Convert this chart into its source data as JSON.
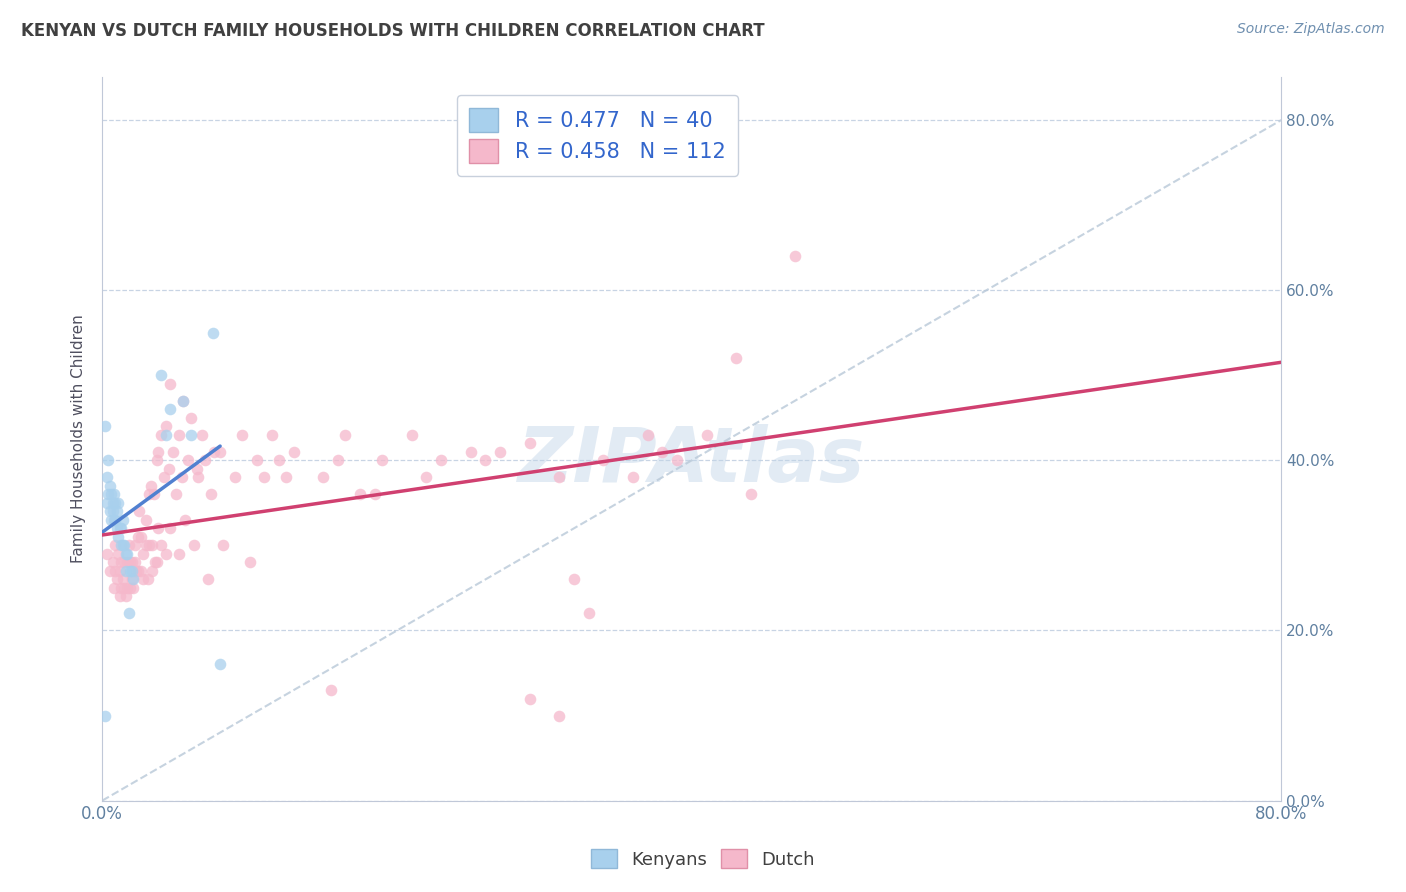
{
  "title": "KENYAN VS DUTCH FAMILY HOUSEHOLDS WITH CHILDREN CORRELATION CHART",
  "source": "Source: ZipAtlas.com",
  "ylabel": "Family Households with Children",
  "watermark": "ZIPAtlas",
  "legend_line1": "R = 0.477   N = 40",
  "legend_line2": "R = 0.458   N = 112",
  "kenyan_color": "#a8d0ed",
  "dutch_color": "#f5b8cb",
  "kenyan_line_color": "#5080d0",
  "dutch_line_color": "#d04070",
  "ref_line_color": "#b8c8d8",
  "xmin": 0.0,
  "xmax": 0.8,
  "ymin": 0.0,
  "ymax": 0.85,
  "kenyan_scatter": [
    [
      0.002,
      0.44
    ],
    [
      0.003,
      0.38
    ],
    [
      0.003,
      0.35
    ],
    [
      0.004,
      0.4
    ],
    [
      0.004,
      0.36
    ],
    [
      0.005,
      0.37
    ],
    [
      0.005,
      0.34
    ],
    [
      0.006,
      0.36
    ],
    [
      0.006,
      0.33
    ],
    [
      0.007,
      0.35
    ],
    [
      0.007,
      0.34
    ],
    [
      0.008,
      0.36
    ],
    [
      0.008,
      0.33
    ],
    [
      0.009,
      0.35
    ],
    [
      0.009,
      0.33
    ],
    [
      0.01,
      0.34
    ],
    [
      0.01,
      0.32
    ],
    [
      0.011,
      0.35
    ],
    [
      0.011,
      0.31
    ],
    [
      0.012,
      0.32
    ],
    [
      0.013,
      0.3
    ],
    [
      0.013,
      0.32
    ],
    [
      0.014,
      0.3
    ],
    [
      0.014,
      0.33
    ],
    [
      0.015,
      0.3
    ],
    [
      0.016,
      0.27
    ],
    [
      0.016,
      0.29
    ],
    [
      0.017,
      0.29
    ],
    [
      0.018,
      0.22
    ],
    [
      0.019,
      0.27
    ],
    [
      0.02,
      0.27
    ],
    [
      0.021,
      0.26
    ],
    [
      0.04,
      0.5
    ],
    [
      0.043,
      0.43
    ],
    [
      0.046,
      0.46
    ],
    [
      0.055,
      0.47
    ],
    [
      0.06,
      0.43
    ],
    [
      0.075,
      0.55
    ],
    [
      0.08,
      0.16
    ],
    [
      0.002,
      0.1
    ]
  ],
  "dutch_scatter": [
    [
      0.003,
      0.29
    ],
    [
      0.005,
      0.27
    ],
    [
      0.007,
      0.28
    ],
    [
      0.008,
      0.25
    ],
    [
      0.009,
      0.3
    ],
    [
      0.009,
      0.27
    ],
    [
      0.01,
      0.26
    ],
    [
      0.011,
      0.29
    ],
    [
      0.012,
      0.27
    ],
    [
      0.012,
      0.24
    ],
    [
      0.013,
      0.28
    ],
    [
      0.013,
      0.25
    ],
    [
      0.014,
      0.26
    ],
    [
      0.015,
      0.28
    ],
    [
      0.015,
      0.25
    ],
    [
      0.016,
      0.24
    ],
    [
      0.017,
      0.28
    ],
    [
      0.017,
      0.25
    ],
    [
      0.018,
      0.3
    ],
    [
      0.019,
      0.28
    ],
    [
      0.019,
      0.25
    ],
    [
      0.02,
      0.28
    ],
    [
      0.02,
      0.26
    ],
    [
      0.021,
      0.25
    ],
    [
      0.022,
      0.3
    ],
    [
      0.022,
      0.28
    ],
    [
      0.023,
      0.27
    ],
    [
      0.024,
      0.31
    ],
    [
      0.024,
      0.27
    ],
    [
      0.025,
      0.34
    ],
    [
      0.026,
      0.31
    ],
    [
      0.026,
      0.27
    ],
    [
      0.028,
      0.29
    ],
    [
      0.028,
      0.26
    ],
    [
      0.03,
      0.33
    ],
    [
      0.03,
      0.3
    ],
    [
      0.031,
      0.26
    ],
    [
      0.032,
      0.36
    ],
    [
      0.032,
      0.3
    ],
    [
      0.033,
      0.37
    ],
    [
      0.034,
      0.3
    ],
    [
      0.034,
      0.27
    ],
    [
      0.035,
      0.36
    ],
    [
      0.036,
      0.28
    ],
    [
      0.037,
      0.4
    ],
    [
      0.037,
      0.28
    ],
    [
      0.038,
      0.41
    ],
    [
      0.038,
      0.32
    ],
    [
      0.04,
      0.43
    ],
    [
      0.04,
      0.3
    ],
    [
      0.042,
      0.38
    ],
    [
      0.043,
      0.44
    ],
    [
      0.043,
      0.29
    ],
    [
      0.045,
      0.39
    ],
    [
      0.046,
      0.49
    ],
    [
      0.046,
      0.32
    ],
    [
      0.048,
      0.41
    ],
    [
      0.05,
      0.36
    ],
    [
      0.052,
      0.43
    ],
    [
      0.052,
      0.29
    ],
    [
      0.054,
      0.38
    ],
    [
      0.055,
      0.47
    ],
    [
      0.056,
      0.33
    ],
    [
      0.058,
      0.4
    ],
    [
      0.06,
      0.45
    ],
    [
      0.062,
      0.3
    ],
    [
      0.064,
      0.39
    ],
    [
      0.065,
      0.38
    ],
    [
      0.068,
      0.43
    ],
    [
      0.07,
      0.4
    ],
    [
      0.072,
      0.26
    ],
    [
      0.074,
      0.36
    ],
    [
      0.076,
      0.41
    ],
    [
      0.08,
      0.41
    ],
    [
      0.082,
      0.3
    ],
    [
      0.09,
      0.38
    ],
    [
      0.095,
      0.43
    ],
    [
      0.1,
      0.28
    ],
    [
      0.105,
      0.4
    ],
    [
      0.11,
      0.38
    ],
    [
      0.115,
      0.43
    ],
    [
      0.12,
      0.4
    ],
    [
      0.125,
      0.38
    ],
    [
      0.13,
      0.41
    ],
    [
      0.15,
      0.38
    ],
    [
      0.16,
      0.4
    ],
    [
      0.165,
      0.43
    ],
    [
      0.175,
      0.36
    ],
    [
      0.185,
      0.36
    ],
    [
      0.19,
      0.4
    ],
    [
      0.21,
      0.43
    ],
    [
      0.22,
      0.38
    ],
    [
      0.23,
      0.4
    ],
    [
      0.25,
      0.41
    ],
    [
      0.26,
      0.4
    ],
    [
      0.27,
      0.41
    ],
    [
      0.29,
      0.42
    ],
    [
      0.31,
      0.38
    ],
    [
      0.32,
      0.26
    ],
    [
      0.33,
      0.22
    ],
    [
      0.34,
      0.4
    ],
    [
      0.36,
      0.38
    ],
    [
      0.37,
      0.43
    ],
    [
      0.38,
      0.41
    ],
    [
      0.39,
      0.4
    ],
    [
      0.41,
      0.43
    ],
    [
      0.43,
      0.52
    ],
    [
      0.44,
      0.36
    ],
    [
      0.47,
      0.64
    ],
    [
      0.155,
      0.13
    ],
    [
      0.29,
      0.12
    ],
    [
      0.31,
      0.1
    ]
  ],
  "bg_color": "#ffffff",
  "grid_color": "#c8d4e4",
  "title_color": "#404040",
  "axis_label_color": "#6080a0"
}
